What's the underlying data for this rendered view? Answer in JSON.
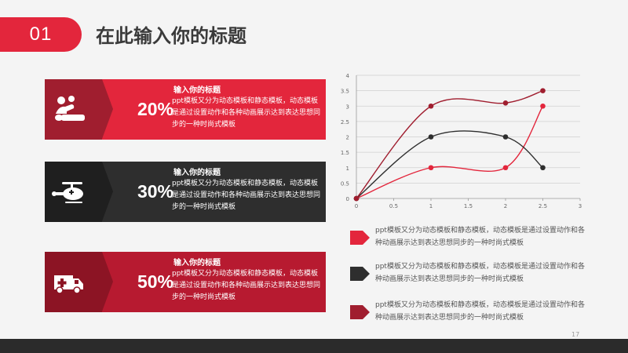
{
  "header": {
    "number": "01",
    "title": "在此输入你的标题"
  },
  "cards": [
    {
      "percent": "20%",
      "title": "输入你的标题",
      "body": "ppt模板又分为动态模板和静态模板，动态模板是通过设置动作和各种动画展示达到表达思想同步的一种时尚式模板",
      "icon": "massage-person-icon"
    },
    {
      "percent": "30%",
      "title": "输入你的标题",
      "body": "ppt模板又分为动态模板和静态模板，动态模板是通过设置动作和各种动画展示达到表达思想同步的一种时尚式模板",
      "icon": "helicopter-icon"
    },
    {
      "percent": "50%",
      "title": "输入你的标题",
      "body": "ppt模板又分为动态模板和静态模板，动态模板是通过设置动作和各种动画展示达到表达思想同步的一种时尚式模板",
      "icon": "ambulance-icon"
    }
  ],
  "legend": [
    {
      "text": "ppt模板又分为动态模板和静态模板，动态模板是通过设置动作和各种动画展示达到表达思想同步的一种时尚式模板",
      "color": "#e3263c"
    },
    {
      "text": "ppt模板又分为动态模板和静态模板，动态模板是通过设置动作和各种动画展示达到表达思想同步的一种时尚式模板",
      "color": "#2e2e2e"
    },
    {
      "text": "ppt模板又分为动态模板和静态模板，动态模板是通过设置动作和各种动画展示达到表达思想同步的一种时尚式模板",
      "color": "#a01e2f"
    }
  ],
  "page_number": "17",
  "chart_data": {
    "type": "line",
    "smooth": true,
    "x_ticks": [
      "0",
      "0.5",
      "1",
      "1.5",
      "2",
      "2.5",
      "3"
    ],
    "y_ticks": [
      "0",
      "0.5",
      "1",
      "1.5",
      "2",
      "2.5",
      "3",
      "3.5",
      "4"
    ],
    "xlim": [
      0,
      3
    ],
    "ylim": [
      0,
      4
    ],
    "grid": true,
    "series": [
      {
        "color": "#e3263c",
        "points": [
          [
            0,
            0
          ],
          [
            1,
            1
          ],
          [
            2,
            1
          ],
          [
            2.5,
            3
          ]
        ]
      },
      {
        "color": "#2e2e2e",
        "points": [
          [
            0,
            0
          ],
          [
            1,
            2
          ],
          [
            2,
            2
          ],
          [
            2.5,
            1
          ]
        ]
      },
      {
        "color": "#a01e2f",
        "points": [
          [
            0,
            0
          ],
          [
            1,
            3
          ],
          [
            2,
            3.1
          ],
          [
            2.5,
            3.5
          ]
        ]
      }
    ]
  }
}
